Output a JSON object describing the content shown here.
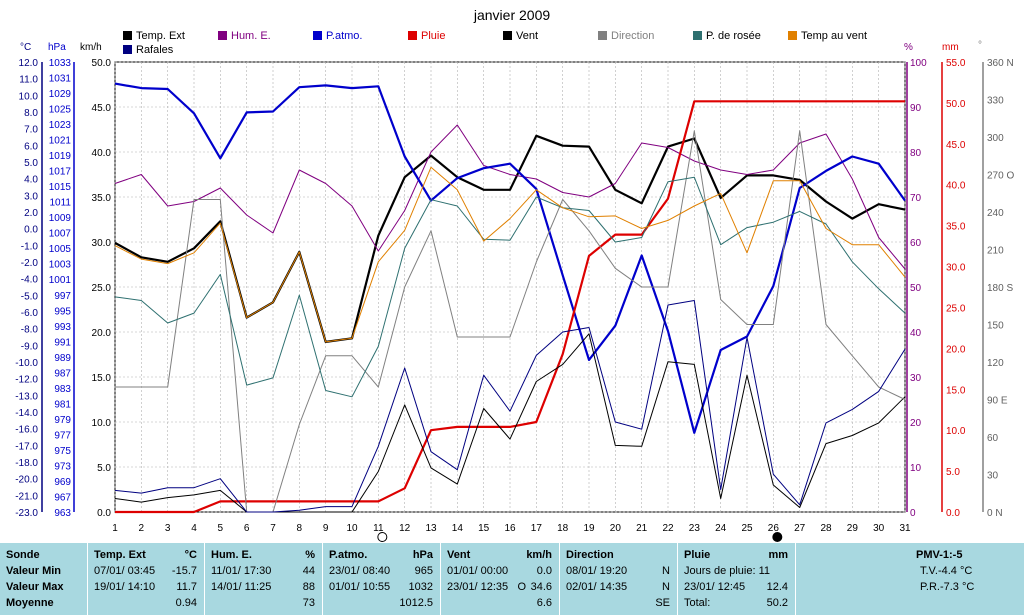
{
  "chart_data": {
    "type": "line",
    "title": "janvier 2009",
    "x": [
      1,
      2,
      3,
      4,
      5,
      6,
      7,
      8,
      9,
      10,
      11,
      12,
      13,
      14,
      15,
      16,
      17,
      18,
      19,
      20,
      21,
      22,
      23,
      24,
      25,
      26,
      27,
      28,
      29,
      30,
      31
    ],
    "x_ticks": [
      "1",
      "2",
      "3",
      "4",
      "5",
      "6",
      "7",
      "8",
      "9",
      "10",
      "11",
      "12",
      "13",
      "14",
      "15",
      "16",
      "17",
      "18",
      "19",
      "20",
      "21",
      "22",
      "23",
      "24",
      "25",
      "26",
      "27",
      "28",
      "29",
      "30",
      "31"
    ],
    "axes": {
      "temp": {
        "unit": "°C",
        "ticks": [
          "12.0",
          "11.0",
          "10.0",
          "8.0",
          "7.0",
          "6.0",
          "5.0",
          "4.0",
          "3.0",
          "2.0",
          "0.0",
          "-1.0",
          "-2.0",
          "-4.0",
          "-5.0",
          "-6.0",
          "-8.0",
          "-9.0",
          "-10.0",
          "-12.0",
          "-13.0",
          "-14.0",
          "-16.0",
          "-17.0",
          "-18.0",
          "-20.0",
          "-21.0",
          "-23.0"
        ]
      },
      "pressure": {
        "unit": "hPa",
        "ticks": [
          "1033",
          "1031",
          "1029",
          "1025",
          "1023",
          "1021",
          "1019",
          "1017",
          "1015",
          "1011",
          "1009",
          "1007",
          "1005",
          "1003",
          "1001",
          "997",
          "995",
          "993",
          "991",
          "989",
          "987",
          "983",
          "981",
          "979",
          "977",
          "975",
          "973",
          "969",
          "967",
          "963"
        ]
      },
      "wind": {
        "unit": "km/h",
        "ylim": [
          0,
          50
        ],
        "ticks": [
          "50.0",
          "45.0",
          "40.0",
          "35.0",
          "30.0",
          "25.0",
          "20.0",
          "15.0",
          "10.0",
          "5.0",
          "0.0"
        ]
      },
      "humidity": {
        "unit": "%",
        "ylim": [
          0,
          100
        ],
        "ticks": [
          "100",
          "90",
          "80",
          "70",
          "60",
          "50",
          "40",
          "30",
          "20",
          "10",
          "0"
        ]
      },
      "rain": {
        "unit": "mm",
        "ylim": [
          0,
          55
        ],
        "ticks": [
          "55.0",
          "50.0",
          "45.0",
          "40.0",
          "35.0",
          "30.0",
          "25.0",
          "20.0",
          "15.0",
          "10.0",
          "5.0",
          "0.0"
        ]
      },
      "direction": {
        "unit": "°",
        "ylim": [
          0,
          360
        ],
        "ticks": [
          "360 N",
          "330",
          "300",
          "270 O",
          "240",
          "210",
          "180 S",
          "150",
          "120",
          "90 E",
          "60",
          "30",
          "0 N"
        ]
      }
    },
    "legend": [
      {
        "name": "Temp. Ext",
        "color": "#000000"
      },
      {
        "name": "Hum. E.",
        "color": "#800080"
      },
      {
        "name": "P.atmo.",
        "color": "#0000cc"
      },
      {
        "name": "Pluie",
        "color": "#dd0000"
      },
      {
        "name": "Vent",
        "color": "#000000"
      },
      {
        "name": "Direction",
        "color": "#808080"
      },
      {
        "name": "P. de rosée",
        "color": "#2e7070"
      },
      {
        "name": "Temp au vent",
        "color": "#e08000"
      },
      {
        "name": "Rafales",
        "color": "#000080"
      }
    ],
    "series": [
      {
        "name": "Temp. Ext",
        "axis": "wind",
        "color": "#000000",
        "width": 2.2,
        "values": [
          29.9,
          28.3,
          27.8,
          29.3,
          32.3,
          21.6,
          23.3,
          28.9,
          18.9,
          19.3,
          30.7,
          37.2,
          39.6,
          37.2,
          35.8,
          35.8,
          41.8,
          40.7,
          40.6,
          35.8,
          34.3,
          40.6,
          41.5,
          34.9,
          37.4,
          37.4,
          36.9,
          34.5,
          32.6,
          34.2,
          33.6
        ]
      },
      {
        "name": "Hum. E.",
        "axis": "humidity",
        "color": "#800080",
        "width": 1,
        "values": [
          73,
          75,
          68,
          69,
          72,
          66,
          62,
          76,
          73,
          68,
          58,
          67,
          80,
          86,
          77,
          75,
          74,
          71,
          70,
          73,
          82,
          81,
          78,
          76,
          75,
          76,
          82,
          84,
          74,
          61,
          54
        ]
      },
      {
        "name": "P.atmo.",
        "axis": "wind",
        "color": "#0000cc",
        "width": 2.2,
        "values": [
          47.6,
          47.1,
          47.0,
          44.3,
          39.3,
          44.4,
          44.5,
          47.2,
          47.4,
          47.1,
          47.3,
          39.5,
          34.6,
          37.1,
          38.2,
          38.7,
          35.9,
          26.3,
          16.9,
          20.7,
          28.5,
          20.1,
          8.8,
          18.0,
          19.5,
          25.1,
          36.0,
          37.9,
          39.5,
          38.7,
          34.6
        ]
      },
      {
        "name": "Pluie",
        "axis": "rain",
        "color": "#dd0000",
        "width": 2.2,
        "values": [
          0.0,
          0.0,
          0.0,
          0.0,
          1.3,
          1.3,
          1.3,
          1.3,
          1.3,
          1.3,
          1.3,
          2.9,
          10.0,
          10.4,
          10.4,
          10.4,
          11.0,
          19.3,
          31.3,
          33.9,
          33.9,
          38.3,
          50.2,
          50.2,
          50.2,
          50.2,
          50.2,
          50.2,
          50.2,
          50.2,
          50.2
        ]
      },
      {
        "name": "Vent",
        "axis": "wind",
        "color": "#000000",
        "width": 1,
        "values": [
          1.5,
          1.1,
          1.6,
          1.9,
          2.4,
          0,
          0,
          0,
          0,
          0,
          4.5,
          11.9,
          4.9,
          3.1,
          11.5,
          8.1,
          14.5,
          16.4,
          19.8,
          7.4,
          7.3,
          16.7,
          16.4,
          1.5,
          15.2,
          3.0,
          0.5,
          7.6,
          8.5,
          9.9,
          12.8
        ]
      },
      {
        "name": "Direction",
        "axis": "direction",
        "color": "#808080",
        "width": 1,
        "values": [
          100,
          100,
          100,
          250,
          250,
          0,
          0,
          70,
          125,
          125,
          100,
          180,
          225,
          140,
          140,
          140,
          200,
          250,
          225,
          195,
          180,
          180,
          305,
          170,
          150,
          150,
          305,
          150,
          125,
          100,
          90
        ]
      },
      {
        "name": "P. de rosée",
        "axis": "wind",
        "color": "#2e7070",
        "width": 1,
        "values": [
          23.9,
          23.5,
          21.0,
          22.1,
          26.4,
          14.1,
          14.9,
          24.1,
          13.5,
          12.8,
          18.4,
          29.3,
          34.7,
          34.0,
          30.3,
          30.2,
          35.0,
          33.8,
          33.5,
          30.0,
          30.5,
          36.7,
          37.2,
          29.7,
          31.6,
          32.2,
          33.4,
          32.0,
          27.8,
          24.8,
          22.1
        ]
      },
      {
        "name": "Temp au vent",
        "axis": "wind",
        "color": "#e08000",
        "width": 1,
        "values": [
          29.6,
          28.1,
          27.6,
          28.8,
          32.1,
          21.6,
          23.3,
          28.9,
          18.9,
          19.3,
          27.8,
          31.3,
          38.3,
          35.8,
          30.1,
          32.6,
          35.8,
          33.8,
          32.8,
          32.9,
          31.5,
          32.4,
          34.0,
          35.4,
          28.8,
          36.8,
          36.8,
          31.5,
          29.7,
          29.7,
          26.1
        ]
      },
      {
        "name": "Rafales",
        "axis": "wind",
        "color": "#000080",
        "width": 1,
        "values": [
          2.4,
          2.1,
          2.7,
          2.7,
          3.7,
          0,
          0,
          0.2,
          0.6,
          0.6,
          7.3,
          16.0,
          6.7,
          4.7,
          15.2,
          11.2,
          17.4,
          20.0,
          20.5,
          10.0,
          9.2,
          23.0,
          23.5,
          2.5,
          19.4,
          4.2,
          0.8,
          9.9,
          11.4,
          13.4,
          18.1
        ]
      }
    ]
  },
  "summary": {
    "columns": [
      {
        "header": "Sonde",
        "rows": [
          "Valeur Min",
          "Valeur Max",
          "Moyenne"
        ]
      },
      {
        "header": "Temp. Ext",
        "unit": "°C",
        "rows": [
          [
            "07/01/ 03:45",
            "-15.7"
          ],
          [
            "19/01/ 14:10",
            "11.7"
          ],
          [
            "",
            "0.94"
          ]
        ]
      },
      {
        "header": "Hum. E.",
        "unit": "%",
        "rows": [
          [
            "11/01/ 17:30",
            "44"
          ],
          [
            "14/01/ 11:25",
            "88"
          ],
          [
            "",
            "73"
          ]
        ]
      },
      {
        "header": "P.atmo.",
        "unit": "hPa",
        "rows": [
          [
            "23/01/ 08:40",
            "965"
          ],
          [
            "01/01/ 10:55",
            "1032"
          ],
          [
            "",
            "1012.5"
          ]
        ]
      },
      {
        "header": "Vent",
        "unit": "km/h",
        "rows": [
          [
            "01/01/ 00:00",
            "0.0"
          ],
          [
            "23/01/ 12:35",
            "O",
            "34.6"
          ],
          [
            "",
            "6.6"
          ]
        ]
      },
      {
        "header": "Direction",
        "rows": [
          [
            "08/01/ 19:20",
            "N"
          ],
          [
            "02/01/ 14:35",
            "N"
          ],
          [
            "",
            "SE"
          ]
        ]
      },
      {
        "header": "Pluie",
        "unit": "mm",
        "rows": [
          [
            "Jours de pluie: 11",
            ""
          ],
          [
            "23/01/ 12:45",
            "12.4"
          ],
          [
            "Total:",
            "50.2"
          ]
        ]
      },
      {
        "header": "PMV-1:-5",
        "rows": [
          "T.V.-4.4 °C",
          "P.R.-7.3 °C",
          ""
        ]
      }
    ]
  }
}
